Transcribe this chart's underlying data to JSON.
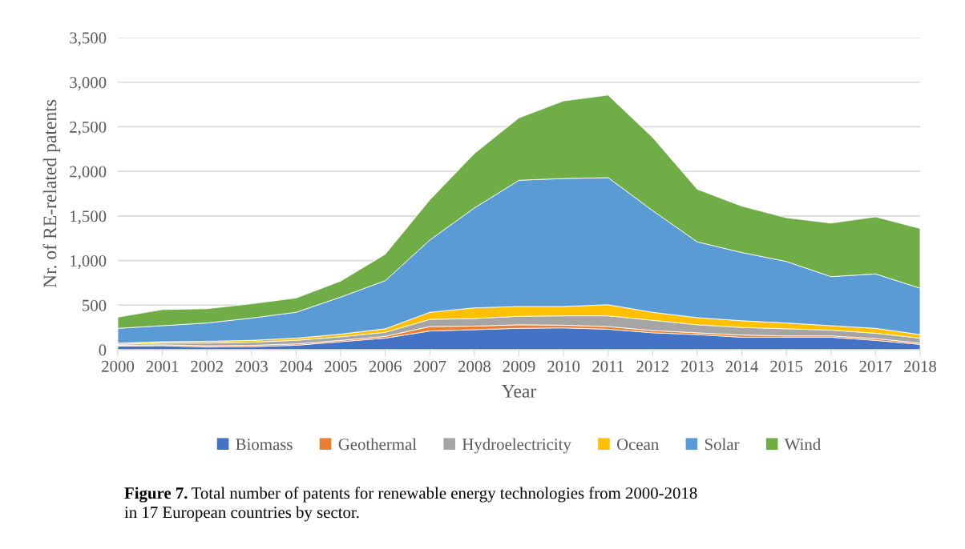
{
  "chart_data": {
    "type": "area",
    "stacked": true,
    "xlabel": "Year",
    "ylabel": "Nr. of RE-related patents",
    "categories": [
      "2000",
      "2001",
      "2002",
      "2003",
      "2004",
      "2005",
      "2006",
      "2007",
      "2008",
      "2009",
      "2010",
      "2011",
      "2012",
      "2013",
      "2014",
      "2015",
      "2016",
      "2017",
      "2018"
    ],
    "series": [
      {
        "name": "Biomass",
        "color": "#4472c4",
        "values": [
          40,
          45,
          30,
          35,
          50,
          90,
          130,
          210,
          225,
          240,
          245,
          230,
          190,
          170,
          140,
          140,
          140,
          105,
          60
        ]
      },
      {
        "name": "Geothermal",
        "color": "#ed7d31",
        "values": [
          10,
          10,
          15,
          15,
          15,
          15,
          20,
          50,
          40,
          40,
          30,
          30,
          25,
          20,
          25,
          15,
          15,
          20,
          15
        ]
      },
      {
        "name": "Hydroelectricity",
        "color": "#a5a5a5",
        "values": [
          10,
          20,
          30,
          35,
          40,
          40,
          45,
          80,
          85,
          95,
          105,
          120,
          115,
          90,
          85,
          80,
          65,
          60,
          55
        ]
      },
      {
        "name": "Ocean",
        "color": "#ffc000",
        "values": [
          15,
          15,
          20,
          20,
          25,
          30,
          40,
          80,
          120,
          110,
          105,
          125,
          90,
          80,
          75,
          65,
          50,
          55,
          40
        ]
      },
      {
        "name": "Solar",
        "color": "#5b9bd5",
        "values": [
          165,
          180,
          205,
          250,
          290,
          415,
          540,
          810,
          1120,
          1415,
          1435,
          1425,
          1140,
          850,
          765,
          690,
          550,
          610,
          520
        ]
      },
      {
        "name": "Wind",
        "color": "#70ad47",
        "values": [
          125,
          180,
          160,
          160,
          160,
          180,
          295,
          450,
          610,
          700,
          870,
          925,
          820,
          590,
          520,
          490,
          600,
          640,
          670
        ]
      }
    ],
    "ylim": [
      0,
      3500
    ],
    "yticks": [
      {
        "value": 0,
        "label": "0"
      },
      {
        "value": 500,
        "label": "500"
      },
      {
        "value": 1000,
        "label": "1,000"
      },
      {
        "value": 1500,
        "label": "1,500"
      },
      {
        "value": 2000,
        "label": "2,000"
      },
      {
        "value": 2500,
        "label": "2,500"
      },
      {
        "value": 3000,
        "label": "3,000"
      },
      {
        "value": 3500,
        "label": "3,500"
      }
    ],
    "grid": "y",
    "legend": "bottom",
    "annotations": [
      "Figure 7.",
      "Total number of patents for renewable energy technologies from 2000-2018\nin 17 European countries by sector."
    ]
  }
}
